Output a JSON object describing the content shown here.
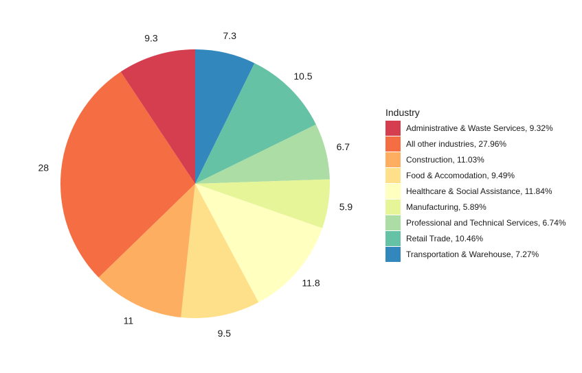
{
  "chart_data": {
    "type": "pie",
    "legend": {
      "title": "Industry",
      "placement": "right"
    },
    "slices": [
      {
        "legend_label": "Administrative & Waste Services, 9.32%",
        "value": 9.32,
        "label": "9.3",
        "color": "#D53E4F"
      },
      {
        "legend_label": "All other industries, 27.96%",
        "value": 27.96,
        "label": "28",
        "color": "#F46D43"
      },
      {
        "legend_label": "Construction, 11.03%",
        "value": 11.03,
        "label": "11",
        "color": "#FDAE61"
      },
      {
        "legend_label": "Food & Accomodation, 9.49%",
        "value": 9.49,
        "label": "9.5",
        "color": "#FEE08B"
      },
      {
        "legend_label": "Healthcare & Social Assistance, 11.84%",
        "value": 11.84,
        "label": "11.8",
        "color": "#FFFFBF"
      },
      {
        "legend_label": "Manufacturing, 5.89%",
        "value": 5.89,
        "label": "5.9",
        "color": "#E6F598"
      },
      {
        "legend_label": "Professional and Technical Services, 6.74%",
        "value": 6.74,
        "label": "6.7",
        "color": "#ABDDA4"
      },
      {
        "legend_label": "Retail Trade, 10.46%",
        "value": 10.46,
        "label": "10.5",
        "color": "#66C2A5"
      },
      {
        "legend_label": "Transportation & Warehouse, 7.27%",
        "value": 7.27,
        "label": "7.3",
        "color": "#3288BD"
      }
    ]
  }
}
